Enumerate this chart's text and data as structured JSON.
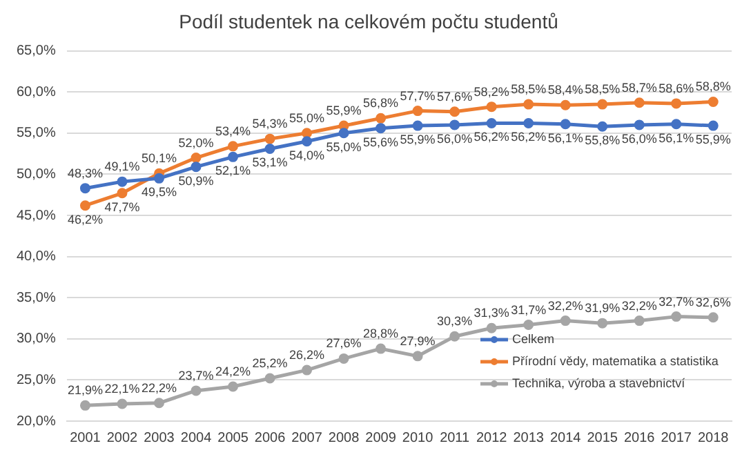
{
  "chart_data": {
    "type": "line",
    "title": "Podíl studentek na celkovém počtu studentů",
    "categories": [
      "2001",
      "2002",
      "2003",
      "2004",
      "2005",
      "2006",
      "2007",
      "2008",
      "2009",
      "2010",
      "2011",
      "2012",
      "2013",
      "2014",
      "2015",
      "2016",
      "2017",
      "2018"
    ],
    "series": [
      {
        "name": "Celkem",
        "color": "#4472c4",
        "values": [
          48.3,
          49.1,
          49.5,
          50.9,
          52.1,
          53.1,
          54.0,
          55.0,
          55.6,
          55.9,
          56.0,
          56.2,
          56.2,
          56.1,
          55.8,
          56.0,
          56.1,
          55.9
        ],
        "value_labels": [
          "48,3%",
          "49,1%",
          "49,5%",
          "50,9%",
          "52,1%",
          "53,1%",
          "54,0%",
          "55,0%",
          "55,6%",
          "55,9%",
          "56,0%",
          "56,2%",
          "56,2%",
          "56,1%",
          "55,8%",
          "56,0%",
          "56,1%",
          "55,9%"
        ]
      },
      {
        "name": "Přírodní vědy, matematika a statistika",
        "color": "#ed7d31",
        "values": [
          46.2,
          47.7,
          50.1,
          52.0,
          53.4,
          54.3,
          55.0,
          55.9,
          56.8,
          57.7,
          57.6,
          58.2,
          58.5,
          58.4,
          58.5,
          58.7,
          58.6,
          58.8
        ],
        "value_labels": [
          "46,2%",
          "47,7%",
          "50,1%",
          "52,0%",
          "53,4%",
          "54,3%",
          "55,0%",
          "55,9%",
          "56,8%",
          "57,7%",
          "57,6%",
          "58,2%",
          "58,5%",
          "58,4%",
          "58,5%",
          "58,7%",
          "58,6%",
          "58,8%"
        ]
      },
      {
        "name": "Technika, výroba a stavebnictví",
        "color": "#a5a5a5",
        "values": [
          21.9,
          22.1,
          22.2,
          23.7,
          24.2,
          25.2,
          26.2,
          27.6,
          28.8,
          27.9,
          30.3,
          31.3,
          31.7,
          32.2,
          31.9,
          32.2,
          32.7,
          32.6
        ],
        "value_labels": [
          "21,9%",
          "22,1%",
          "22,2%",
          "23,7%",
          "24,2%",
          "25,2%",
          "26,2%",
          "27,6%",
          "28,8%",
          "27,9%",
          "30,3%",
          "31,3%",
          "31,7%",
          "32,2%",
          "31,9%",
          "32,2%",
          "32,7%",
          "32,6%"
        ]
      }
    ],
    "ylim": [
      20,
      65
    ],
    "yticks": [
      {
        "value": 20,
        "label": "20,0%"
      },
      {
        "value": 25,
        "label": "25,0%"
      },
      {
        "value": 30,
        "label": "30,0%"
      },
      {
        "value": 35,
        "label": "35,0%"
      },
      {
        "value": 40,
        "label": "40,0%"
      },
      {
        "value": 45,
        "label": "45,0%"
      },
      {
        "value": 50,
        "label": "50,0%"
      },
      {
        "value": 55,
        "label": "55,0%"
      },
      {
        "value": 60,
        "label": "60,0%"
      },
      {
        "value": 65,
        "label": "65,0%"
      }
    ],
    "grid": "y",
    "legend": "right",
    "marker": "circle",
    "line_style": "solid"
  }
}
